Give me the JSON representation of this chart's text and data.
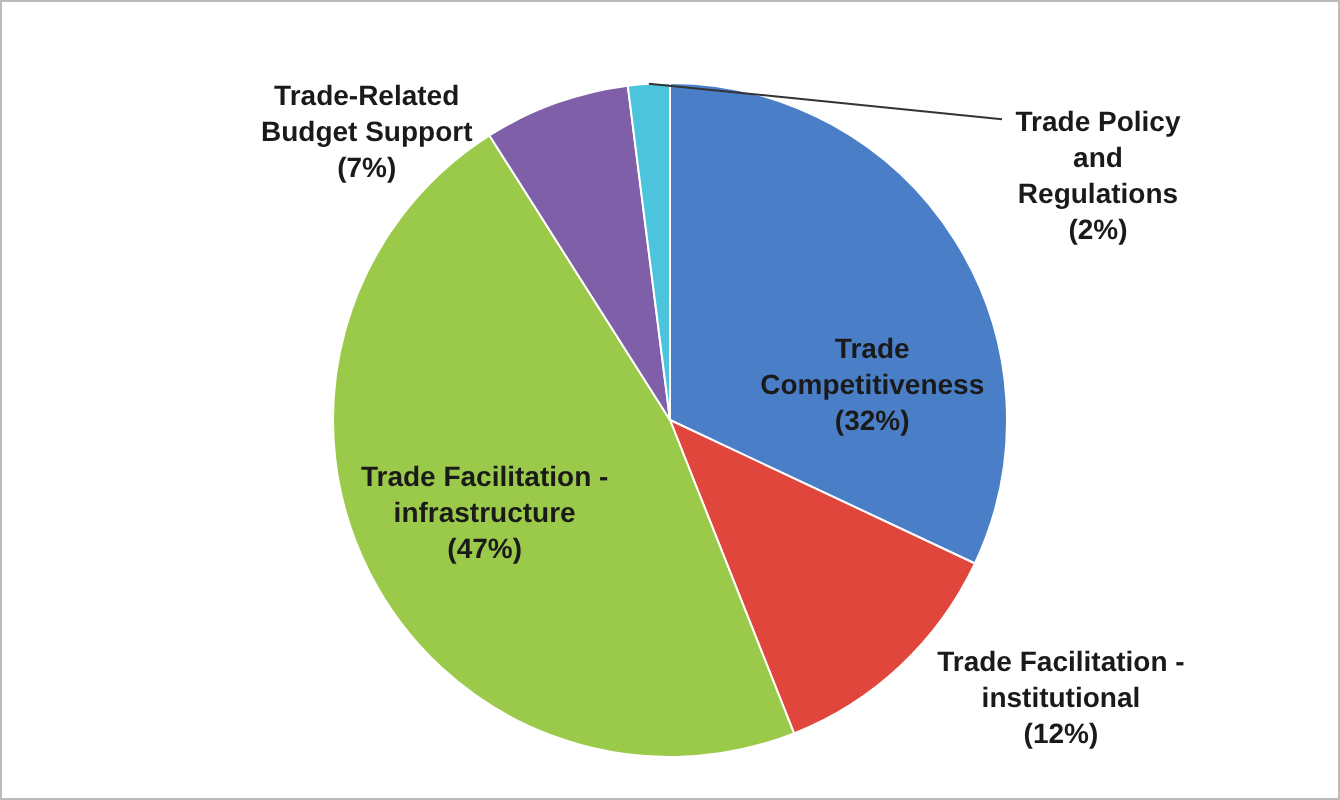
{
  "chart_data": {
    "type": "pie",
    "categories": [
      "Trade Competitiveness",
      "Trade Facilitation - institutional",
      "Trade Facilitation - infrastructure",
      "Trade-Related Budget Support",
      "Trade Policy and Regulations"
    ],
    "values": [
      32,
      12,
      47,
      7,
      2
    ],
    "value_labels": [
      "(32%)",
      "(12%)",
      "(47%)",
      "(7%)",
      "(2%)"
    ],
    "colors": [
      "#4a7fc8",
      "#e0463c",
      "#9bc94a",
      "#7f5fa8",
      "#4bc4dc"
    ],
    "legend": false
  }
}
